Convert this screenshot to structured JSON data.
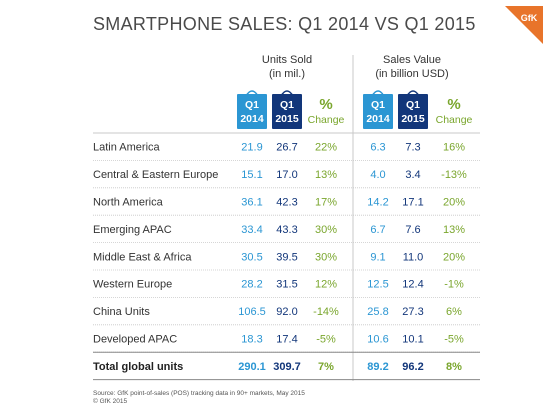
{
  "title": "SMARTPHONE SALES: Q1 2014 VS Q1 2015",
  "logo_text": "GfK",
  "colors": {
    "accent_light": "#2b96d3",
    "accent_dark": "#12367a",
    "change": "#7aa62d",
    "grid": "#c8c8c8",
    "logo": "#e8742a"
  },
  "chart_data": {
    "type": "table",
    "groups": [
      {
        "title": "Units Sold",
        "subtitle": "(in mil.)",
        "columns": [
          {
            "top": "Q1",
            "bottom": "2014",
            "style": "light"
          },
          {
            "top": "Q1",
            "bottom": "2015",
            "style": "dark"
          },
          {
            "top": "%",
            "bottom": "Change",
            "style": "change"
          }
        ]
      },
      {
        "title": "Sales Value",
        "subtitle": "(in billion USD)",
        "columns": [
          {
            "top": "Q1",
            "bottom": "2014",
            "style": "light"
          },
          {
            "top": "Q1",
            "bottom": "2015",
            "style": "dark"
          },
          {
            "top": "%",
            "bottom": "Change",
            "style": "change"
          }
        ]
      }
    ],
    "rows": [
      {
        "region": "Latin America",
        "values": [
          "21.9",
          "26.7",
          "22%",
          "6.3",
          "7.3",
          "16%"
        ]
      },
      {
        "region": "Central & Eastern Europe",
        "values": [
          "15.1",
          "17.0",
          "13%",
          "4.0",
          "3.4",
          "-13%"
        ]
      },
      {
        "region": "North America",
        "values": [
          "36.1",
          "42.3",
          "17%",
          "14.2",
          "17.1",
          "20%"
        ]
      },
      {
        "region": "Emerging APAC",
        "values": [
          "33.4",
          "43.3",
          "30%",
          "6.7",
          "7.6",
          "13%"
        ]
      },
      {
        "region": "Middle East & Africa",
        "values": [
          "30.5",
          "39.5",
          "30%",
          "9.1",
          "11.0",
          "20%"
        ]
      },
      {
        "region": "Western Europe",
        "values": [
          "28.2",
          "31.5",
          "12%",
          "12.5",
          "12.4",
          "-1%"
        ]
      },
      {
        "region": "China Units",
        "values": [
          "106.5",
          "92.0",
          "-14%",
          "25.8",
          "27.3",
          "6%"
        ]
      },
      {
        "region": "Developed APAC",
        "values": [
          "18.3",
          "17.4",
          "-5%",
          "10.6",
          "10.1",
          "-5%"
        ]
      }
    ],
    "total": {
      "region": "Total global units",
      "values": [
        "290.1",
        "309.7",
        "7%",
        "89.2",
        "96.2",
        "8%"
      ]
    }
  },
  "source": {
    "line1": "Source: GfK point-of-sales (POS) tracking data in 90+ markets, May 2015",
    "line2": "© GfK 2015"
  }
}
